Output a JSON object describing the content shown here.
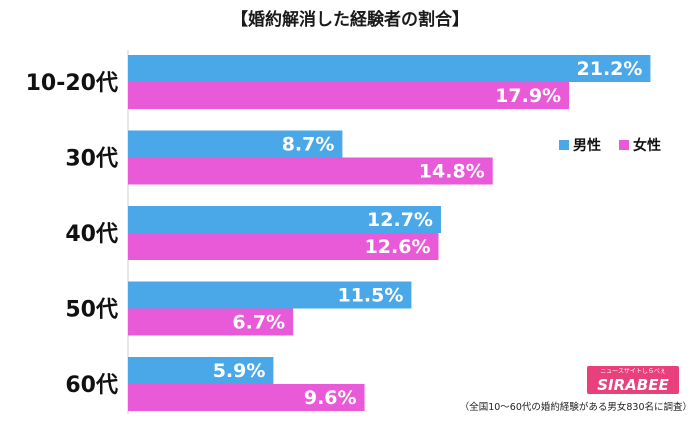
{
  "chart_data": {
    "type": "bar",
    "orientation": "horizontal",
    "title": "【婚約解消した経験者の割合】",
    "categories": [
      "10-20代",
      "30代",
      "40代",
      "50代",
      "60代"
    ],
    "series": [
      {
        "name": "男性",
        "color": "#4aa8e8",
        "values": [
          21.2,
          8.7,
          12.7,
          11.5,
          5.9
        ]
      },
      {
        "name": "女性",
        "color": "#e85ad8",
        "values": [
          17.9,
          14.8,
          12.6,
          6.7,
          9.6
        ]
      }
    ],
    "value_labels": [
      [
        "21.2%",
        "8.7%",
        "12.7%",
        "11.5%",
        "5.9%"
      ],
      [
        "17.9%",
        "14.8%",
        "12.6%",
        "6.7%",
        "9.6%"
      ]
    ],
    "legend_position": "right",
    "grid": false,
    "xlim": [
      0,
      22.4
    ]
  },
  "logo": {
    "text": "SIRABEE",
    "sub": "ニュースサイトしらべぇ",
    "color": "#e8407a"
  },
  "footnote": "（全国10～60代の婚約経験がある男女830名に調査）"
}
